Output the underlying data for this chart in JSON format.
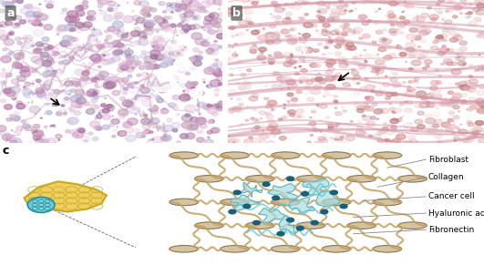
{
  "panel_labels": [
    "a",
    "b",
    "c"
  ],
  "panel_a_color": "#c8a0c8",
  "panel_b_color": "#e8b0c0",
  "background_color": "#ffffff",
  "legend_labels": [
    "Fibroblast",
    "Collagen",
    "Cancer cell",
    "Hyaluronic acid",
    "Fibronectin"
  ],
  "fibroblast_color": "#d4c4a0",
  "fibroblast_outline": "#8b7355",
  "collagen_color": "#c4a060",
  "cancer_cell_color": "#a8dce0",
  "cancer_cell_outline": "#60b0b8",
  "hyaluronic_color": "#60c8d0",
  "fibronectin_color": "#40a0b0",
  "dot_color": "#1a5f7a",
  "pancreas_color": "#f0d060",
  "pancreas_outline": "#c8a820",
  "tumor_color": "#70c8d0",
  "tumor_outline": "#2090a0",
  "label_fontsize": 6.5,
  "panel_label_fontsize": 9,
  "fig_bg": "#f5f5f5",
  "line_color": "#888888"
}
